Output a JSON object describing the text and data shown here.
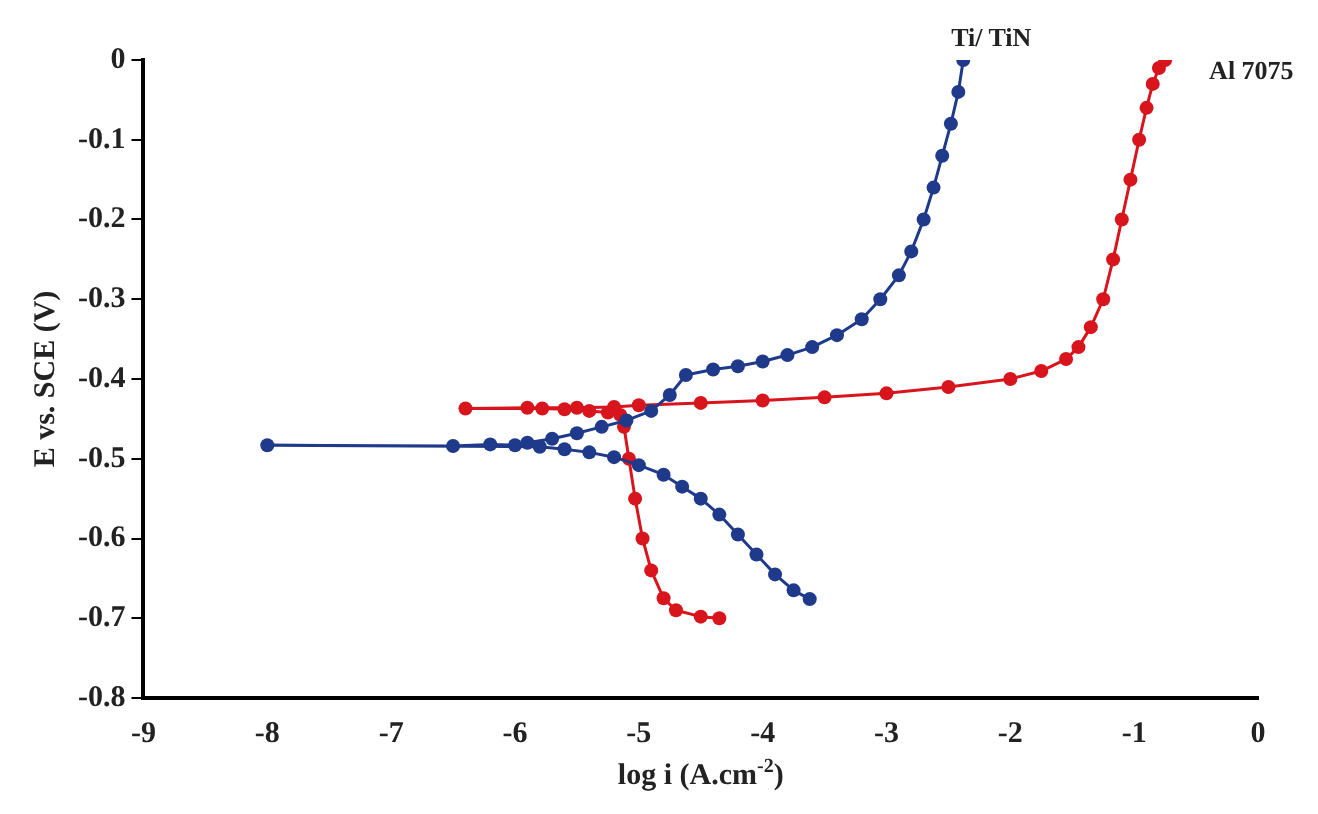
{
  "chart_data": {
    "type": "line",
    "xlabel": "log i (A.cm$^{-2}$)",
    "ylabel": "E vs. SCE (V)",
    "xlim": [
      -9,
      0
    ],
    "ylim": [
      -0.8,
      0
    ],
    "xticks": [
      -9,
      -8,
      -7,
      -6,
      -5,
      -4,
      -3,
      -2,
      -1,
      0
    ],
    "yticks": [
      -0.8,
      -0.7,
      -0.6,
      -0.5,
      -0.4,
      -0.3,
      -0.2,
      -0.1,
      0
    ],
    "grid": false,
    "legend": false,
    "marker": "circle",
    "line_style": "solid",
    "series": [
      {
        "name": "Ti/ TiN",
        "color": "#1f3a8a",
        "x": [
          -3.62,
          -3.75,
          -3.9,
          -4.05,
          -4.2,
          -4.35,
          -4.5,
          -4.65,
          -4.8,
          -5.0,
          -5.2,
          -5.4,
          -5.6,
          -5.8,
          -8.0,
          -6.5,
          -6.2,
          -6.0,
          -5.9,
          -5.7,
          -5.5,
          -5.3,
          -5.1,
          -4.9,
          -4.75,
          -4.62,
          -4.4,
          -4.2,
          -4.0,
          -3.8,
          -3.6,
          -3.4,
          -3.2,
          -3.05,
          -2.9,
          -2.8,
          -2.7,
          -2.62,
          -2.55,
          -2.48,
          -2.42,
          -2.38
        ],
        "values": [
          -0.676,
          -0.665,
          -0.645,
          -0.62,
          -0.595,
          -0.57,
          -0.55,
          -0.535,
          -0.52,
          -0.508,
          -0.498,
          -0.492,
          -0.488,
          -0.485,
          -0.483,
          -0.484,
          -0.482,
          -0.483,
          -0.48,
          -0.475,
          -0.468,
          -0.46,
          -0.452,
          -0.44,
          -0.42,
          -0.395,
          -0.388,
          -0.384,
          -0.378,
          -0.37,
          -0.36,
          -0.345,
          -0.325,
          -0.3,
          -0.27,
          -0.24,
          -0.2,
          -0.16,
          -0.12,
          -0.08,
          -0.04,
          0
        ]
      },
      {
        "name": "Al 7075",
        "color": "#d8141c",
        "x": [
          -4.35,
          -4.5,
          -4.7,
          -4.8,
          -4.9,
          -4.97,
          -5.03,
          -5.08,
          -5.12,
          -5.15,
          -5.25,
          -5.4,
          -5.6,
          -5.78,
          -6.4,
          -5.9,
          -5.5,
          -5.2,
          -5.0,
          -4.5,
          -4.0,
          -3.5,
          -3.0,
          -2.5,
          -2.0,
          -1.75,
          -1.55,
          -1.45,
          -1.35,
          -1.25,
          -1.17,
          -1.1,
          -1.03,
          -0.96,
          -0.9,
          -0.85,
          -0.8,
          -0.75
        ],
        "values": [
          -0.7,
          -0.698,
          -0.69,
          -0.675,
          -0.64,
          -0.6,
          -0.55,
          -0.5,
          -0.46,
          -0.445,
          -0.442,
          -0.44,
          -0.438,
          -0.437,
          -0.437,
          -0.436,
          -0.436,
          -0.435,
          -0.433,
          -0.43,
          -0.427,
          -0.423,
          -0.418,
          -0.41,
          -0.4,
          -0.39,
          -0.375,
          -0.36,
          -0.335,
          -0.3,
          -0.25,
          -0.2,
          -0.15,
          -0.1,
          -0.06,
          -0.03,
          -0.01,
          0
        ]
      }
    ]
  }
}
